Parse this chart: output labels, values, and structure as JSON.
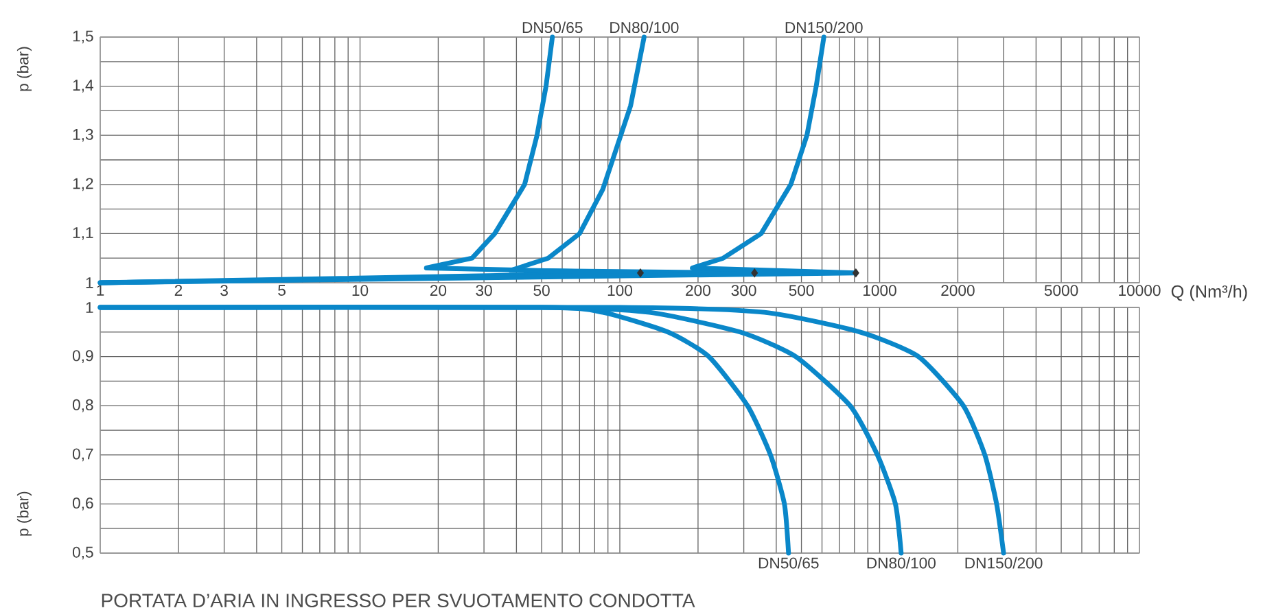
{
  "chart_data": [
    {
      "type": "line",
      "xlabel": "Q (Nm³/h)",
      "ylabel": "p (bar)",
      "log": "x",
      "grid": true,
      "line_style": "solid",
      "xlim": [
        1,
        10000
      ],
      "ylim": [
        1,
        1.5
      ],
      "xticks": [
        1,
        2,
        3,
        {
          "value": 4,
          "label": null
        },
        5,
        {
          "value": 6,
          "label": null
        },
        {
          "value": 7,
          "label": null
        },
        {
          "value": 8,
          "label": null
        },
        {
          "value": 9,
          "label": null
        },
        10,
        20,
        30,
        {
          "value": 40,
          "label": null
        },
        50,
        {
          "value": 60,
          "label": null
        },
        {
          "value": 70,
          "label": null
        },
        {
          "value": 80,
          "label": null
        },
        {
          "value": 90,
          "label": null
        },
        100,
        200,
        300,
        {
          "value": 400,
          "label": null
        },
        500,
        {
          "value": 600,
          "label": null
        },
        {
          "value": 700,
          "label": null
        },
        {
          "value": 800,
          "label": null
        },
        {
          "value": 900,
          "label": null
        },
        1000,
        2000,
        {
          "value": 3000,
          "label": null
        },
        {
          "value": 4000,
          "label": null
        },
        5000,
        {
          "value": 6000,
          "label": null
        },
        {
          "value": 7000,
          "label": null
        },
        {
          "value": 8000,
          "label": null
        },
        {
          "value": 9000,
          "label": null
        },
        10000
      ],
      "yticks": [
        1,
        {
          "value": 1.05,
          "label": null
        },
        {
          "value": 1.1,
          "label": "1,1"
        },
        {
          "value": 1.15,
          "label": null
        },
        {
          "value": 1.2,
          "label": "1,2"
        },
        {
          "value": 1.25,
          "label": null
        },
        {
          "value": 1.3,
          "label": "1,3"
        },
        {
          "value": 1.35,
          "label": null
        },
        {
          "value": 1.4,
          "label": "1,4"
        },
        {
          "value": 1.45,
          "label": null
        },
        {
          "value": 1.5,
          "label": "1,5"
        }
      ],
      "series": [
        {
          "name": "DN50/65",
          "color": "#0a87c9",
          "x": [
            1,
            120,
            18,
            27,
            33,
            43,
            48,
            52,
            55
          ],
          "values": [
            1.0,
            1.02,
            1.03,
            1.05,
            1.1,
            1.2,
            1.3,
            1.4,
            1.5
          ]
        },
        {
          "name": "DN80/100",
          "color": "#0a87c9",
          "x": [
            1,
            330,
            38,
            53,
            70,
            86,
            110,
            124
          ],
          "values": [
            1.0,
            1.02,
            1.025,
            1.05,
            1.1,
            1.19,
            1.36,
            1.5
          ]
        },
        {
          "name": "DN150/200",
          "color": "#0a87c9",
          "x": [
            1,
            810,
            190,
            250,
            350,
            455,
            525,
            570,
            610
          ],
          "values": [
            1.0,
            1.02,
            1.03,
            1.05,
            1.1,
            1.2,
            1.3,
            1.4,
            1.5
          ]
        },
        {
          "type": "scatter",
          "marker": "diamond",
          "color": "#333333",
          "x": [
            120,
            330,
            810
          ],
          "values": [
            1.02,
            1.02,
            1.02
          ]
        }
      ]
    },
    {
      "type": "line",
      "ylabel": "p (bar)",
      "log": "x",
      "grid": true,
      "line_style": "solid",
      "tick_labels": "y",
      "xlim": [
        1,
        10000
      ],
      "ylim": [
        0.5,
        1
      ],
      "xticks": [
        1,
        2,
        3,
        4,
        5,
        6,
        7,
        8,
        9,
        10,
        20,
        30,
        40,
        50,
        60,
        70,
        80,
        90,
        100,
        200,
        300,
        400,
        500,
        600,
        700,
        800,
        900,
        1000,
        2000,
        3000,
        4000,
        5000,
        6000,
        7000,
        8000,
        9000,
        10000
      ],
      "yticks": [
        {
          "value": 0.5,
          "label": "0,5"
        },
        {
          "value": 0.55,
          "label": null
        },
        {
          "value": 0.6,
          "label": "0,6"
        },
        {
          "value": 0.65,
          "label": null
        },
        {
          "value": 0.7,
          "label": "0,7"
        },
        {
          "value": 0.75,
          "label": null
        },
        {
          "value": 0.8,
          "label": "0,8"
        },
        {
          "value": 0.85,
          "label": null
        },
        {
          "value": 0.9,
          "label": "0,9"
        },
        {
          "value": 0.95,
          "label": null
        },
        1
      ],
      "annotations": [
        "PORTATA D’ARIA IN INGRESSO PER SVUOTAMENTO CONDOTTA"
      ],
      "series": [
        {
          "name": "DN50/65",
          "color": "#0a87c9",
          "x": [
            1,
            50,
            86,
            153,
            220,
            310,
            380,
            430,
            446
          ],
          "values": [
            1.0,
            1.0,
            0.99,
            0.95,
            0.9,
            0.8,
            0.7,
            0.6,
            0.5
          ]
        },
        {
          "name": "DN80/100",
          "color": "#0a87c9",
          "x": [
            1,
            50,
            130,
            290,
            475,
            770,
            980,
            1150,
            1210
          ],
          "values": [
            1.0,
            1.0,
            0.99,
            0.95,
            0.9,
            0.8,
            0.7,
            0.6,
            0.5
          ]
        },
        {
          "name": "DN150/200",
          "color": "#0a87c9",
          "x": [
            1,
            100,
            360,
            840,
            1410,
            2100,
            2540,
            2820,
            3000
          ],
          "values": [
            1.0,
            1.0,
            0.99,
            0.95,
            0.9,
            0.8,
            0.7,
            0.6,
            0.5
          ]
        }
      ]
    }
  ]
}
